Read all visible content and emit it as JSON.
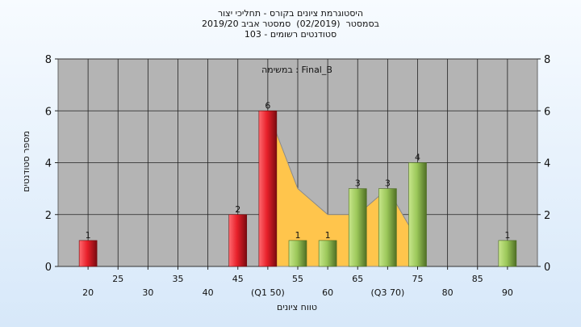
{
  "titles": {
    "line1": "היסטוגרמת ציונים בקורס - תחליכי יצור",
    "line2": "בסמסטר  (02/2019)  סמסטר אביב 2019/20",
    "line3": "סטודנטים רשומים - 103"
  },
  "colors": {
    "plot_bg": "#b4b4b4",
    "red_bar": "#e8202a",
    "green_bar": "#9cc85a",
    "area_fill": "#ffc54c"
  },
  "chart_data": {
    "type": "bar",
    "title": "",
    "annotation": "במשימה : Final_B",
    "xlabel": "טווח ציונים",
    "ylabel": "מספר סטודנטים",
    "ylim": [
      0,
      8
    ],
    "yticks": [
      0,
      2,
      4,
      6,
      8
    ],
    "grid": true,
    "xticks_upper": [
      "25",
      "35",
      "45",
      "55",
      "65",
      "75",
      "85"
    ],
    "xticks_lower": [
      "20",
      "30",
      "40",
      "(Q1 50)",
      "60",
      "(Q3 70)",
      "80",
      "90"
    ],
    "bars": [
      {
        "x": 20,
        "value": 1,
        "color": "red"
      },
      {
        "x": 45,
        "value": 2,
        "color": "red"
      },
      {
        "x": 50,
        "value": 6,
        "color": "red"
      },
      {
        "x": 55,
        "value": 1,
        "color": "green"
      },
      {
        "x": 60,
        "value": 1,
        "color": "green"
      },
      {
        "x": 65,
        "value": 3,
        "color": "green"
      },
      {
        "x": 70,
        "value": 3,
        "color": "green"
      },
      {
        "x": 75,
        "value": 4,
        "color": "green"
      },
      {
        "x": 90,
        "value": 1,
        "color": "green"
      }
    ],
    "area": [
      {
        "x": 50,
        "y": 6
      },
      {
        "x": 55,
        "y": 3
      },
      {
        "x": 60,
        "y": 2
      },
      {
        "x": 65,
        "y": 2
      },
      {
        "x": 70,
        "y": 3
      },
      {
        "x": 75,
        "y": 1
      }
    ]
  }
}
